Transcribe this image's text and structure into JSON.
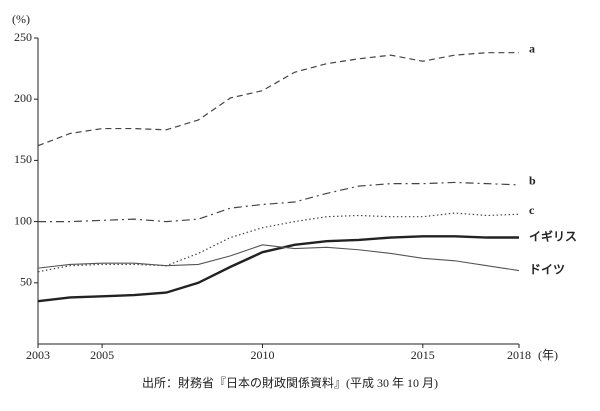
{
  "chart_data": {
    "type": "line",
    "y_label": "(%)",
    "x_label": "(年)",
    "source": "出所：財務省『日本の財政関係資料』(平成 30 年 10 月)",
    "x": [
      2003,
      2004,
      2005,
      2006,
      2007,
      2008,
      2009,
      2010,
      2011,
      2012,
      2013,
      2014,
      2015,
      2016,
      2017,
      2018
    ],
    "xlim": [
      2003,
      2018
    ],
    "xticks": [
      2003,
      2005,
      2010,
      2015,
      2018
    ],
    "ylim": [
      0,
      250
    ],
    "yticks": [
      50,
      100,
      150,
      200,
      250
    ],
    "grid": false,
    "series": [
      {
        "name": "a",
        "color": "#444444",
        "linestyle": "dashed",
        "values": [
          162,
          172,
          176,
          176,
          175,
          183,
          201,
          207,
          222,
          229,
          233,
          236,
          231,
          236,
          238,
          238
        ]
      },
      {
        "name": "b",
        "color": "#444444",
        "linestyle": "dashdot",
        "values": [
          100,
          100,
          101,
          102,
          100,
          102,
          111,
          114,
          116,
          123,
          129,
          131,
          131,
          132,
          131,
          130
        ]
      },
      {
        "name": "c",
        "color": "#444444",
        "linestyle": "dotted",
        "values": [
          59,
          64,
          65,
          65,
          64,
          74,
          87,
          95,
          100,
          104,
          105,
          104,
          104,
          107,
          105,
          106
        ]
      },
      {
        "name": "イギリス",
        "color": "#222222",
        "linestyle": "thick",
        "values": [
          35,
          38,
          39,
          40,
          42,
          50,
          63,
          75,
          81,
          84,
          85,
          87,
          88,
          88,
          87,
          87
        ]
      },
      {
        "name": "ドイツ",
        "color": "#555555",
        "linestyle": "solid",
        "values": [
          62,
          65,
          66,
          66,
          64,
          65,
          72,
          81,
          78,
          79,
          77,
          74,
          70,
          68,
          64,
          60
        ]
      }
    ]
  }
}
